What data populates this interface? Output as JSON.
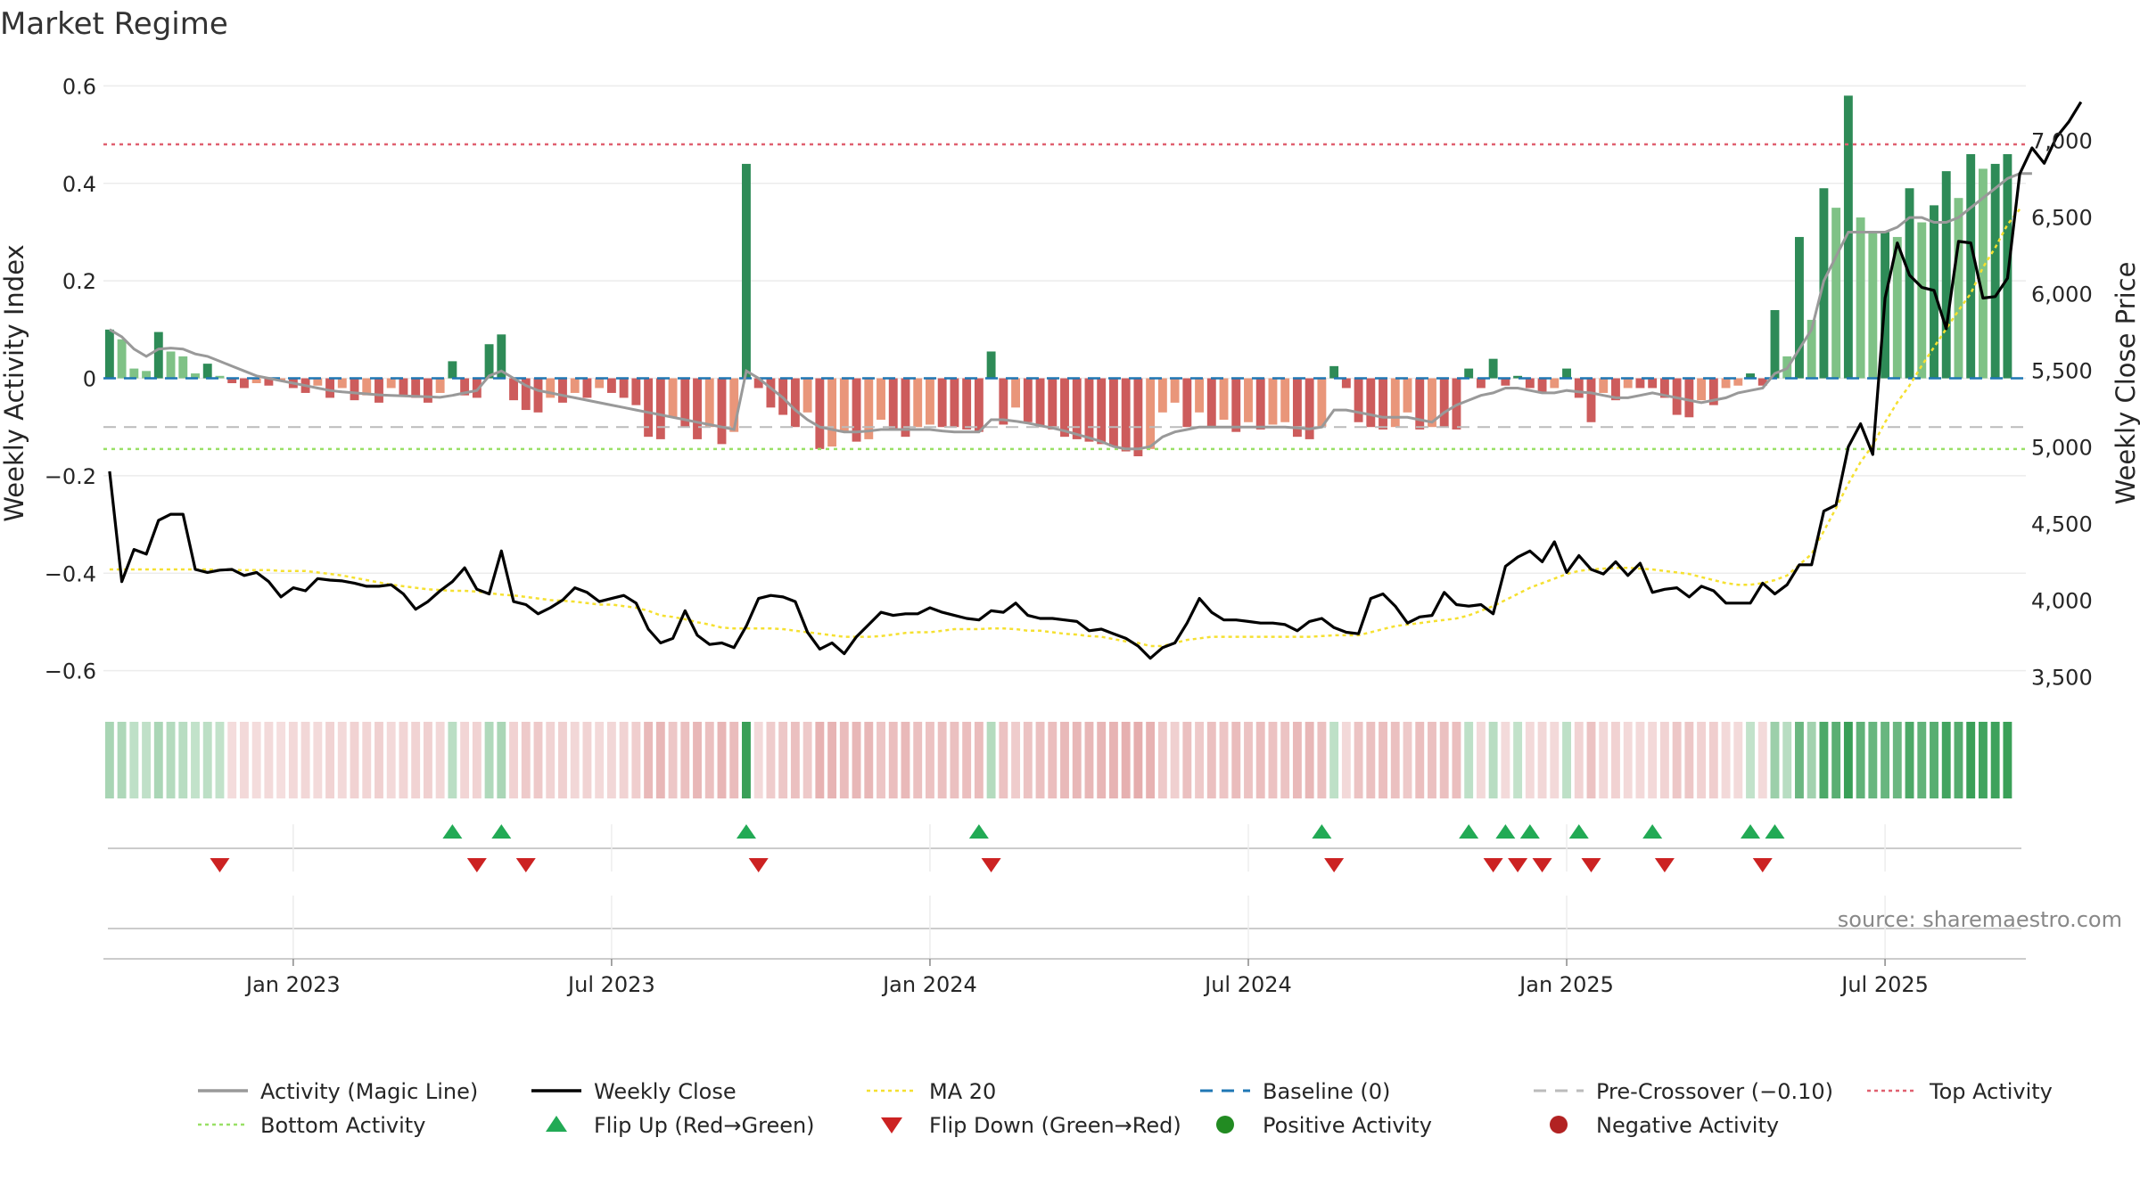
{
  "chart_data": {
    "type": "bar",
    "title": "Market Regime",
    "ylabel": "Weekly Activity Index",
    "y2label": "Weekly Close Price",
    "ylim": [
      -0.65,
      0.63
    ],
    "y2lim": [
      3380,
      7450
    ],
    "y_ticks": [
      0.6,
      0.4,
      0.2,
      0,
      -0.2,
      -0.4,
      -0.6
    ],
    "y_tick_labels": [
      "0.6",
      "0.4",
      "0.2",
      "0",
      "−0.2",
      "−0.4",
      "−0.6"
    ],
    "y2_ticks": [
      7000,
      6500,
      6000,
      5500,
      5000,
      4500,
      4000,
      3500
    ],
    "y2_tick_labels": [
      "7,000",
      "6,500",
      "6,000",
      "5,500",
      "5,000",
      "4,500",
      "4,000",
      "3,500"
    ],
    "x_tick_labels": [
      "Jan 2023",
      "Jul 2023",
      "Jan 2024",
      "Jul 2024",
      "Jan 2025",
      "Jul 2025"
    ],
    "x_tick_weeks": [
      15,
      41,
      67,
      93,
      119,
      145
    ],
    "weeks": 157,
    "top_activity": 0.48,
    "bottom_activity": -0.145,
    "pre_crossover": -0.1,
    "baseline": 0,
    "activity": [
      0.1,
      0.08,
      0.02,
      0.015,
      0.095,
      0.055,
      0.045,
      0.01,
      0.03,
      0.005,
      -0.01,
      -0.02,
      -0.01,
      -0.015,
      -0.005,
      -0.02,
      -0.03,
      -0.015,
      -0.04,
      -0.02,
      -0.045,
      -0.035,
      -0.05,
      -0.02,
      -0.035,
      -0.04,
      -0.05,
      -0.03,
      0.035,
      -0.035,
      -0.04,
      0.07,
      0.09,
      -0.045,
      -0.065,
      -0.07,
      -0.04,
      -0.05,
      -0.03,
      -0.04,
      -0.02,
      -0.03,
      -0.04,
      -0.055,
      -0.12,
      -0.125,
      -0.08,
      -0.1,
      -0.125,
      -0.1,
      -0.135,
      -0.11,
      0.44,
      -0.02,
      -0.06,
      -0.075,
      -0.1,
      -0.07,
      -0.145,
      -0.14,
      -0.11,
      -0.13,
      -0.125,
      -0.085,
      -0.105,
      -0.12,
      -0.1,
      -0.095,
      -0.1,
      -0.1,
      -0.105,
      -0.11,
      0.055,
      -0.095,
      -0.06,
      -0.09,
      -0.1,
      -0.105,
      -0.12,
      -0.125,
      -0.13,
      -0.135,
      -0.14,
      -0.15,
      -0.16,
      -0.145,
      -0.07,
      -0.05,
      -0.1,
      -0.07,
      -0.1,
      -0.085,
      -0.11,
      -0.09,
      -0.105,
      -0.095,
      -0.09,
      -0.12,
      -0.125,
      -0.1,
      0.025,
      -0.02,
      -0.09,
      -0.1,
      -0.105,
      -0.1,
      -0.07,
      -0.105,
      -0.1,
      -0.1,
      -0.105,
      0.02,
      -0.02,
      0.04,
      -0.015,
      0.005,
      -0.02,
      -0.03,
      -0.02,
      0.02,
      -0.04,
      -0.09,
      -0.03,
      -0.045,
      -0.02,
      -0.02,
      -0.02,
      -0.04,
      -0.075,
      -0.08,
      -0.045,
      -0.055,
      -0.02,
      -0.015,
      0.01,
      -0.015,
      0.14,
      0.045,
      0.29,
      0.12,
      0.39,
      0.35,
      0.58,
      0.33,
      0.3,
      0.3,
      0.29,
      0.39,
      0.32,
      0.355,
      0.425,
      0.37,
      0.46,
      0.43,
      0.44,
      0.46
    ],
    "magic_line": [
      0.1,
      0.085,
      0.06,
      0.045,
      0.06,
      0.062,
      0.06,
      0.05,
      0.045,
      0.035,
      0.025,
      0.015,
      0.005,
      0.0,
      -0.005,
      -0.01,
      -0.015,
      -0.02,
      -0.025,
      -0.028,
      -0.03,
      -0.032,
      -0.034,
      -0.035,
      -0.036,
      -0.037,
      -0.038,
      -0.039,
      -0.035,
      -0.03,
      -0.025,
      0.005,
      0.015,
      0.0,
      -0.015,
      -0.025,
      -0.03,
      -0.035,
      -0.04,
      -0.045,
      -0.05,
      -0.055,
      -0.06,
      -0.065,
      -0.07,
      -0.075,
      -0.08,
      -0.085,
      -0.09,
      -0.095,
      -0.1,
      -0.105,
      0.015,
      0.0,
      -0.02,
      -0.04,
      -0.065,
      -0.085,
      -0.1,
      -0.105,
      -0.11,
      -0.11,
      -0.108,
      -0.105,
      -0.105,
      -0.105,
      -0.105,
      -0.105,
      -0.108,
      -0.11,
      -0.11,
      -0.11,
      -0.085,
      -0.085,
      -0.088,
      -0.092,
      -0.097,
      -0.102,
      -0.108,
      -0.115,
      -0.122,
      -0.13,
      -0.14,
      -0.145,
      -0.145,
      -0.14,
      -0.12,
      -0.11,
      -0.105,
      -0.1,
      -0.1,
      -0.1,
      -0.1,
      -0.1,
      -0.1,
      -0.1,
      -0.1,
      -0.102,
      -0.104,
      -0.1,
      -0.065,
      -0.065,
      -0.07,
      -0.075,
      -0.08,
      -0.08,
      -0.08,
      -0.085,
      -0.09,
      -0.07,
      -0.055,
      -0.045,
      -0.035,
      -0.03,
      -0.02,
      -0.02,
      -0.025,
      -0.03,
      -0.03,
      -0.025,
      -0.028,
      -0.03,
      -0.035,
      -0.04,
      -0.04,
      -0.035,
      -0.03,
      -0.035,
      -0.04,
      -0.045,
      -0.05,
      -0.045,
      -0.04,
      -0.03,
      -0.025,
      -0.02,
      0.01,
      0.02,
      0.06,
      0.1,
      0.2,
      0.25,
      0.3,
      0.3,
      0.3,
      0.3,
      0.31,
      0.33,
      0.33,
      0.32,
      0.32,
      0.33,
      0.35,
      0.37,
      0.39,
      0.41,
      0.42,
      0.42
    ],
    "weekly_close": [
      4840,
      4120,
      4330,
      4300,
      4520,
      4560,
      4560,
      4200,
      4180,
      4195,
      4200,
      4160,
      4180,
      4120,
      4020,
      4080,
      4060,
      4140,
      4130,
      4125,
      4110,
      4090,
      4090,
      4100,
      4040,
      3940,
      3990,
      4060,
      4120,
      4210,
      4070,
      4040,
      4320,
      3990,
      3970,
      3910,
      3950,
      4000,
      4080,
      4050,
      3990,
      4010,
      4030,
      3980,
      3810,
      3720,
      3750,
      3930,
      3770,
      3710,
      3720,
      3690,
      3830,
      4010,
      4030,
      4020,
      3990,
      3790,
      3680,
      3720,
      3650,
      3760,
      3840,
      3920,
      3900,
      3910,
      3910,
      3950,
      3920,
      3900,
      3880,
      3870,
      3930,
      3920,
      3980,
      3900,
      3880,
      3880,
      3870,
      3860,
      3800,
      3810,
      3780,
      3750,
      3700,
      3620,
      3690,
      3720,
      3850,
      4010,
      3920,
      3870,
      3870,
      3860,
      3850,
      3850,
      3840,
      3800,
      3860,
      3880,
      3820,
      3790,
      3780,
      4010,
      4040,
      3960,
      3850,
      3890,
      3900,
      4050,
      3970,
      3960,
      3970,
      3910,
      4220,
      4280,
      4320,
      4250,
      4380,
      4180,
      4290,
      4200,
      4170,
      4250,
      4160,
      4240,
      4050,
      4070,
      4080,
      4020,
      4090,
      4060,
      3980,
      3980,
      3980,
      4110,
      4040,
      4100,
      4230,
      4230,
      4580,
      4620,
      5000,
      5150,
      4950,
      5970,
      6330,
      6120,
      6040,
      6020,
      5770,
      6340,
      6330,
      5970,
      5980,
      6100,
      6780,
      6950,
      6850,
      7020,
      7120,
      7250
    ],
    "ma20": [
      4200,
      4200,
      4200,
      4200,
      4200,
      4200,
      4200,
      4200,
      4200,
      4195,
      4195,
      4195,
      4195,
      4195,
      4190,
      4190,
      4190,
      4180,
      4170,
      4160,
      4145,
      4130,
      4115,
      4100,
      4090,
      4080,
      4070,
      4065,
      4060,
      4060,
      4055,
      4045,
      4035,
      4030,
      4020,
      4010,
      4000,
      3995,
      3990,
      3980,
      3970,
      3970,
      3960,
      3950,
      3930,
      3900,
      3890,
      3875,
      3855,
      3840,
      3820,
      3815,
      3815,
      3815,
      3815,
      3810,
      3800,
      3790,
      3780,
      3770,
      3760,
      3760,
      3760,
      3765,
      3775,
      3785,
      3790,
      3790,
      3800,
      3810,
      3810,
      3810,
      3815,
      3815,
      3810,
      3800,
      3800,
      3790,
      3780,
      3775,
      3765,
      3760,
      3745,
      3730,
      3720,
      3700,
      3700,
      3720,
      3740,
      3750,
      3760,
      3760,
      3760,
      3760,
      3760,
      3760,
      3760,
      3760,
      3760,
      3765,
      3770,
      3770,
      3770,
      3790,
      3810,
      3830,
      3840,
      3850,
      3860,
      3870,
      3880,
      3900,
      3930,
      3960,
      4000,
      4040,
      4080,
      4110,
      4140,
      4170,
      4190,
      4200,
      4205,
      4210,
      4210,
      4205,
      4200,
      4190,
      4180,
      4170,
      4150,
      4130,
      4110,
      4100,
      4100,
      4110,
      4130,
      4160,
      4230,
      4300,
      4450,
      4600,
      4760,
      4900,
      5010,
      5160,
      5290,
      5400,
      5530,
      5650,
      5770,
      5890,
      6000,
      6170,
      6300,
      6450,
      6550
    ],
    "flip_up_weeks": [
      28,
      32,
      52,
      71,
      99,
      111,
      114,
      116,
      120,
      126,
      134,
      136
    ],
    "flip_down_weeks": [
      9,
      30,
      34,
      53,
      72,
      100,
      113,
      115,
      117,
      121,
      127,
      135
    ],
    "colors": {
      "pos_strong": "#2e8b57",
      "pos_light": "#7fc286",
      "neg_strong": "#cd5c5c",
      "neg_light": "#e9967a",
      "magic": "#999999",
      "close": "#000000",
      "ma": "#f5e030",
      "baseline": "#1f77b4",
      "pre": "#bbbbbb",
      "top": "#e06070",
      "bottom": "#99e066",
      "flip_up": "#22aa55",
      "flip_down": "#cc2222",
      "pos_dot": "#228b22",
      "neg_dot": "#b22222"
    },
    "source": "source: sharemaestro.com",
    "legend": [
      {
        "label": "Activity (Magic Line)",
        "kind": "line",
        "color": "#999999"
      },
      {
        "label": "Weekly Close",
        "kind": "line",
        "color": "#000000"
      },
      {
        "label": "MA 20",
        "kind": "dotted",
        "color": "#f5e030"
      },
      {
        "label": "Baseline (0)",
        "kind": "dashed",
        "color": "#1f77b4"
      },
      {
        "label": "Pre-Crossover (−0.10)",
        "kind": "dashed",
        "color": "#bbbbbb"
      },
      {
        "label": "Top Activity",
        "kind": "dotted",
        "color": "#e06070"
      },
      {
        "label": "Bottom Activity",
        "kind": "dotted",
        "color": "#99e066"
      },
      {
        "label": "Flip Up (Red→Green)",
        "kind": "tri-up",
        "color": "#22aa55"
      },
      {
        "label": "Flip Down (Green→Red)",
        "kind": "tri-down",
        "color": "#cc2222"
      },
      {
        "label": "Positive Activity",
        "kind": "dot",
        "color": "#228b22"
      },
      {
        "label": "Negative Activity",
        "kind": "dot",
        "color": "#b22222"
      }
    ]
  }
}
